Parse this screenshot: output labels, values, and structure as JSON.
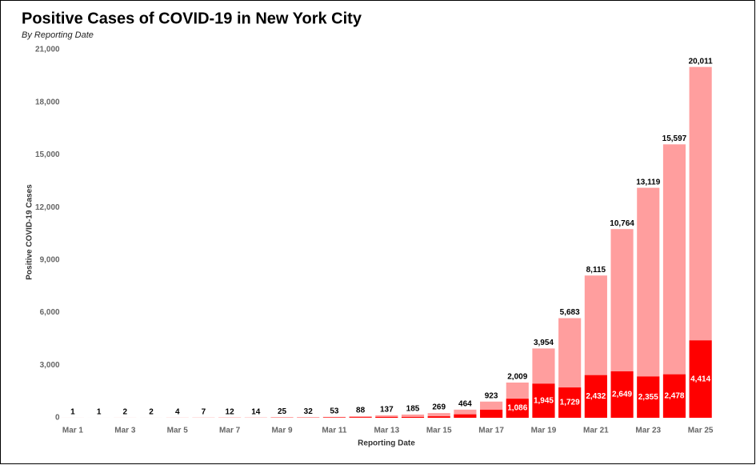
{
  "chart_data": {
    "type": "bar",
    "title": "Positive Cases of COVID-19 in New York City",
    "subtitle": "By Reporting Date",
    "x_label": "Reporting Date",
    "y_label": "Positive COVID-19 Cases",
    "categories": [
      "Mar 1",
      null,
      "Mar 3",
      null,
      "Mar 5",
      null,
      "Mar 7",
      null,
      "Mar 9",
      null,
      "Mar 11",
      null,
      "Mar 13",
      null,
      "Mar 15",
      null,
      "Mar 17",
      null,
      "Mar 19",
      null,
      "Mar 21",
      null,
      "Mar 23",
      null,
      "Mar 25"
    ],
    "series": [
      {
        "color": "#ff9e9e",
        "values": [
          1,
          1,
          2,
          2,
          4,
          7,
          12,
          14,
          25,
          32,
          53,
          88,
          137,
          185,
          269,
          464,
          923,
          2009,
          3954,
          5683,
          8115,
          10764,
          13119,
          15597,
          20011
        ],
        "value_labels": [
          "1",
          "1",
          "2",
          "2",
          "4",
          "7",
          "12",
          "14",
          "25",
          "32",
          "53",
          "88",
          "137",
          "185",
          "269",
          "464",
          "923",
          "2,009",
          "3,954",
          "5,683",
          "8,115",
          "10,764",
          "13,119",
          "15,597",
          "20,011"
        ]
      },
      {
        "color": "#ff0000",
        "values": [
          1,
          0,
          1,
          0,
          2,
          3,
          5,
          2,
          11,
          7,
          21,
          35,
          49,
          48,
          84,
          195,
          459,
          1086,
          1945,
          1729,
          2432,
          2649,
          2355,
          2478,
          4414
        ],
        "value_labels": [
          null,
          null,
          null,
          null,
          null,
          null,
          null,
          null,
          null,
          null,
          null,
          null,
          null,
          null,
          null,
          null,
          null,
          "1,086",
          "1,945",
          "1,729",
          "2,432",
          "2,649",
          "2,355",
          "2,478",
          "4,414"
        ]
      }
    ],
    "ylim": [
      0,
      21000
    ],
    "yticks": [
      0,
      {
        "value": 3000,
        "label": "3,000"
      },
      {
        "value": 6000,
        "label": "6,000"
      },
      {
        "value": 9000,
        "label": "9,000"
      },
      {
        "value": 12000,
        "label": "12,000"
      },
      {
        "value": 15000,
        "label": "15,000"
      },
      {
        "value": 18000,
        "label": "18,000"
      },
      {
        "value": 21000,
        "label": "21,000"
      }
    ]
  }
}
